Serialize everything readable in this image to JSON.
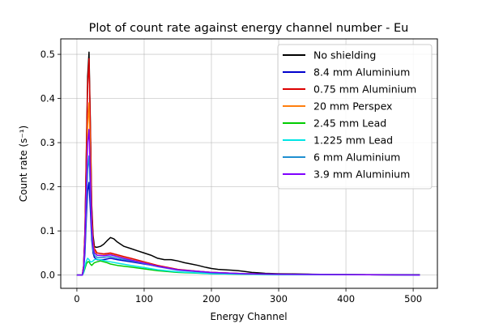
{
  "chart_data": {
    "type": "line",
    "title": "Plot of count rate against energy channel number - Eu",
    "xlabel": "Energy Channel",
    "ylabel": "Count rate (s⁻¹)",
    "xlim": [
      -24,
      536
    ],
    "ylim": [
      -0.03,
      0.535
    ],
    "xticks": [
      0,
      100,
      200,
      300,
      400,
      500
    ],
    "yticks": [
      0.0,
      0.1,
      0.2,
      0.3,
      0.4,
      0.5
    ],
    "xtick_labels": [
      "0",
      "100",
      "200",
      "300",
      "400",
      "500"
    ],
    "ytick_labels": [
      "0.0",
      "0.1",
      "0.2",
      "0.3",
      "0.4",
      "0.5"
    ],
    "grid": true,
    "legend_position": "top-right",
    "series": [
      {
        "name": "No shielding",
        "color": "#000000",
        "x": [
          0,
          8,
          10,
          12,
          14,
          16,
          18,
          20,
          22,
          24,
          26,
          28,
          30,
          35,
          40,
          45,
          50,
          55,
          60,
          65,
          70,
          80,
          90,
          100,
          110,
          120,
          130,
          140,
          150,
          160,
          170,
          180,
          190,
          200,
          210,
          220,
          230,
          240,
          250,
          260,
          270,
          280,
          300,
          350,
          400,
          450,
          510
        ],
        "y": [
          0,
          0,
          0.02,
          0.1,
          0.28,
          0.45,
          0.505,
          0.35,
          0.16,
          0.09,
          0.065,
          0.063,
          0.063,
          0.065,
          0.07,
          0.078,
          0.085,
          0.082,
          0.075,
          0.07,
          0.065,
          0.06,
          0.055,
          0.05,
          0.045,
          0.038,
          0.035,
          0.035,
          0.032,
          0.028,
          0.025,
          0.022,
          0.018,
          0.015,
          0.013,
          0.012,
          0.011,
          0.01,
          0.008,
          0.006,
          0.005,
          0.004,
          0.003,
          0.002,
          0.001,
          0.001,
          0.001
        ]
      },
      {
        "name": "8.4 mm Aluminium",
        "color": "#0000cc",
        "x": [
          0,
          8,
          10,
          12,
          14,
          16,
          18,
          20,
          22,
          24,
          26,
          30,
          40,
          50,
          60,
          80,
          100,
          120,
          150,
          200,
          250,
          300,
          400,
          510
        ],
        "y": [
          0,
          0,
          0.01,
          0.05,
          0.13,
          0.19,
          0.21,
          0.15,
          0.08,
          0.05,
          0.04,
          0.035,
          0.035,
          0.038,
          0.035,
          0.03,
          0.025,
          0.02,
          0.012,
          0.006,
          0.003,
          0.002,
          0.001,
          0
        ]
      },
      {
        "name": "0.75 mm Aluminium",
        "color": "#dd0000",
        "x": [
          0,
          8,
          10,
          12,
          14,
          16,
          18,
          20,
          22,
          24,
          26,
          30,
          40,
          50,
          60,
          70,
          80,
          100,
          120,
          150,
          200,
          250,
          300,
          400,
          510
        ],
        "y": [
          0,
          0,
          0.02,
          0.1,
          0.27,
          0.43,
          0.49,
          0.34,
          0.15,
          0.08,
          0.06,
          0.05,
          0.048,
          0.05,
          0.046,
          0.042,
          0.038,
          0.03,
          0.022,
          0.013,
          0.006,
          0.003,
          0.002,
          0.001,
          0
        ]
      },
      {
        "name": "20 mm Perspex",
        "color": "#ff7f0e",
        "x": [
          0,
          8,
          10,
          12,
          14,
          16,
          18,
          20,
          22,
          24,
          26,
          30,
          40,
          50,
          60,
          80,
          100,
          120,
          150,
          200,
          250,
          300,
          400,
          510
        ],
        "y": [
          0,
          0,
          0.015,
          0.08,
          0.21,
          0.34,
          0.39,
          0.27,
          0.12,
          0.07,
          0.055,
          0.045,
          0.045,
          0.047,
          0.043,
          0.035,
          0.028,
          0.02,
          0.012,
          0.006,
          0.003,
          0.002,
          0.001,
          0
        ]
      },
      {
        "name": "2.45 mm Lead",
        "color": "#00cc00",
        "x": [
          0,
          8,
          10,
          12,
          14,
          16,
          18,
          20,
          22,
          24,
          26,
          30,
          35,
          40,
          45,
          50,
          60,
          80,
          100,
          120,
          150,
          200,
          250,
          300,
          400,
          510
        ],
        "y": [
          0,
          0,
          0.005,
          0.015,
          0.025,
          0.03,
          0.03,
          0.025,
          0.022,
          0.025,
          0.028,
          0.03,
          0.032,
          0.03,
          0.028,
          0.025,
          0.022,
          0.018,
          0.014,
          0.01,
          0.006,
          0.003,
          0.002,
          0.001,
          0.001,
          0
        ]
      },
      {
        "name": "1.225 mm Lead",
        "color": "#00e5e5",
        "x": [
          0,
          8,
          10,
          12,
          14,
          16,
          18,
          20,
          22,
          24,
          26,
          30,
          35,
          40,
          50,
          60,
          80,
          100,
          120,
          150,
          200,
          250,
          300,
          400,
          510
        ],
        "y": [
          0,
          0,
          0.005,
          0.02,
          0.032,
          0.038,
          0.035,
          0.03,
          0.03,
          0.032,
          0.035,
          0.036,
          0.035,
          0.033,
          0.03,
          0.027,
          0.022,
          0.017,
          0.012,
          0.007,
          0.003,
          0.002,
          0.001,
          0.001,
          0
        ]
      },
      {
        "name": "6 mm Aluminium",
        "color": "#1f8fd0",
        "x": [
          0,
          8,
          10,
          12,
          14,
          16,
          18,
          20,
          22,
          24,
          26,
          30,
          40,
          50,
          60,
          80,
          100,
          120,
          150,
          200,
          250,
          300,
          400,
          510
        ],
        "y": [
          0,
          0,
          0.01,
          0.06,
          0.15,
          0.24,
          0.27,
          0.19,
          0.09,
          0.055,
          0.045,
          0.04,
          0.04,
          0.042,
          0.038,
          0.032,
          0.026,
          0.019,
          0.011,
          0.005,
          0.003,
          0.002,
          0.001,
          0
        ]
      },
      {
        "name": "3.9 mm Aluminium",
        "color": "#7f00ff",
        "x": [
          0,
          8,
          10,
          12,
          14,
          16,
          18,
          20,
          22,
          24,
          26,
          30,
          40,
          50,
          60,
          80,
          100,
          120,
          150,
          200,
          250,
          300,
          400,
          510
        ],
        "y": [
          0,
          0,
          0.015,
          0.08,
          0.2,
          0.3,
          0.33,
          0.23,
          0.11,
          0.065,
          0.05,
          0.045,
          0.044,
          0.046,
          0.042,
          0.034,
          0.027,
          0.02,
          0.012,
          0.006,
          0.003,
          0.002,
          0.001,
          0
        ]
      }
    ]
  }
}
